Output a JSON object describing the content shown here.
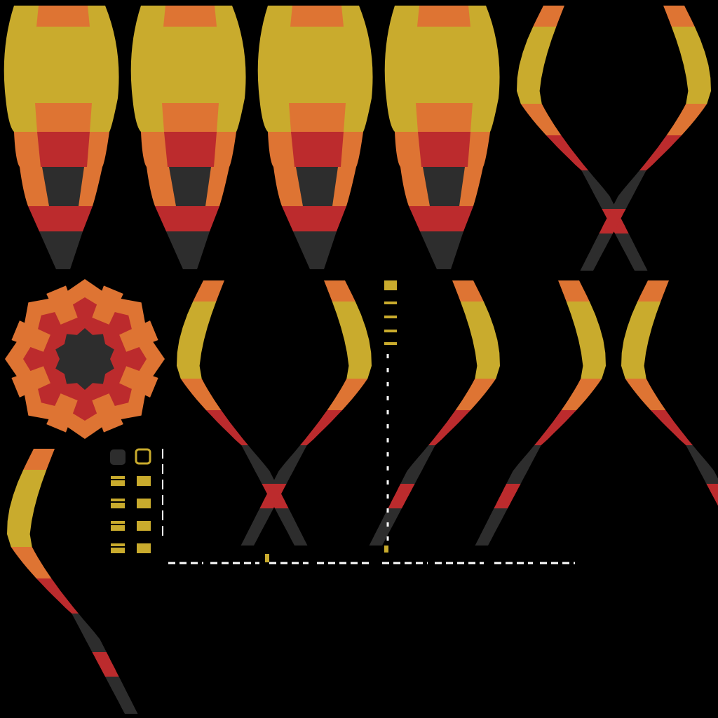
{
  "atlas": {
    "background": "#000000",
    "palette": {
      "yellow": "#c9ab2d",
      "orange": "#de7433",
      "red": "#bc2b2d",
      "dark": "#2d2d2d",
      "white": "#ffffff"
    },
    "full_panels": [
      {
        "name": "balloon-panel-full-1"
      },
      {
        "name": "balloon-panel-full-2"
      },
      {
        "name": "balloon-panel-full-3"
      },
      {
        "name": "balloon-panel-full-4"
      }
    ],
    "side_strips": [
      {
        "name": "balloon-strip-1"
      },
      {
        "name": "balloon-strip-2"
      },
      {
        "name": "balloon-strip-3"
      },
      {
        "name": "balloon-strip-4"
      },
      {
        "name": "balloon-strip-5"
      },
      {
        "name": "balloon-strip-6"
      },
      {
        "name": "balloon-strip-7"
      },
      {
        "name": "balloon-strip-8"
      },
      {
        "name": "balloon-strip-9"
      }
    ],
    "top_cap": {
      "name": "balloon-top-cap"
    },
    "small_parts": {
      "name": "basket-parts"
    }
  }
}
